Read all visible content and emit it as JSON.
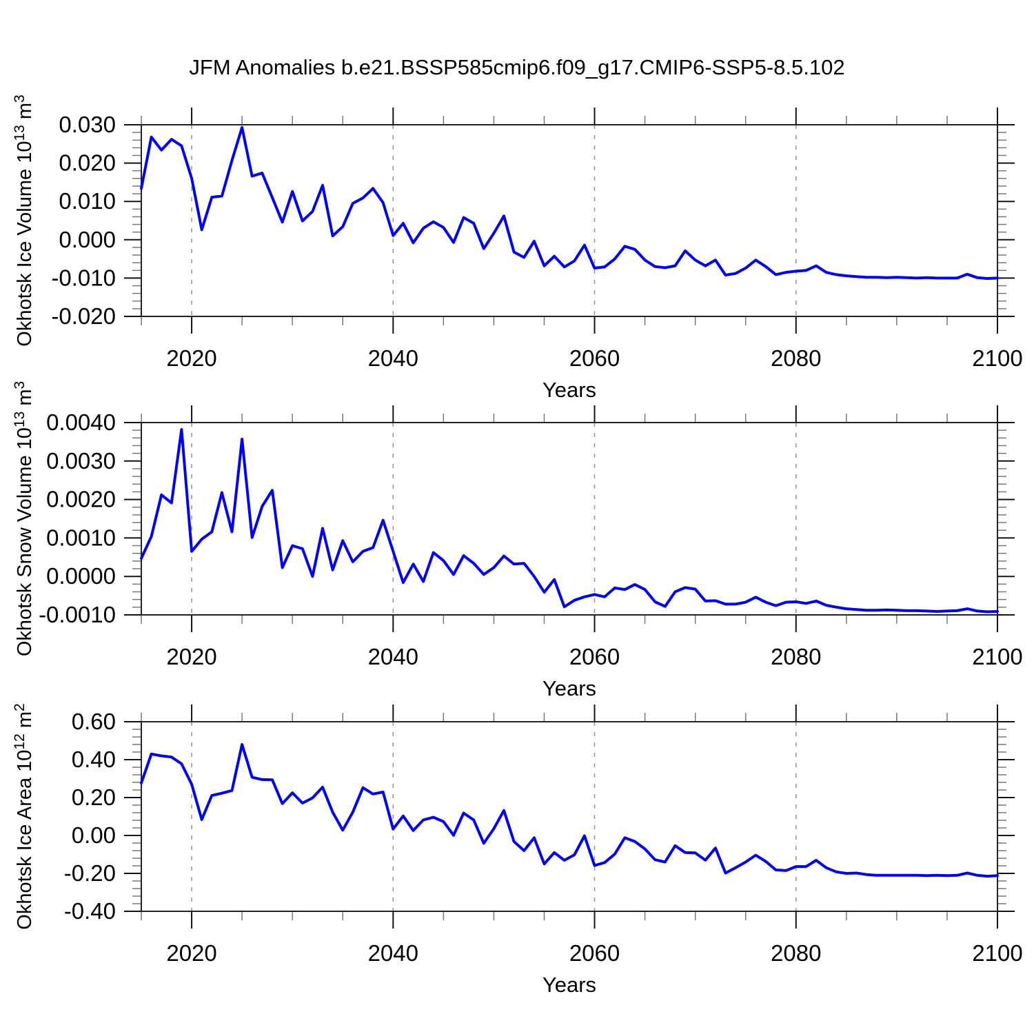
{
  "title": "JFM Anomalies b.e21.BSSP585cmip6.f09_g17.CMIP6-SSP5-8.5.102",
  "line_color": "#0000FF",
  "grid_color": "#999999",
  "axis_color": "#222222",
  "x_axis": {
    "label": "Years",
    "lim": [
      2015,
      2100
    ],
    "major_ticks": [
      2020,
      2040,
      2060,
      2080,
      2100
    ],
    "major_tick_labels": [
      "2020",
      "2040",
      "2060",
      "2080",
      "2100"
    ],
    "minor_step": 5,
    "gridlines": [
      2020,
      2040,
      2060,
      2080
    ]
  },
  "chart_data": [
    {
      "type": "line",
      "ylabel": "Okhotsk Ice Volume 10^13 m^3",
      "ylabel_parts": {
        "base": "Okhotsk Ice Volume 10",
        "sup1": "13",
        "mid": " m",
        "sup2": "3"
      },
      "xlabel": "Years",
      "ylim": [
        -0.02,
        0.03
      ],
      "ytick_values": [
        0.03,
        0.02,
        0.01,
        0.0,
        -0.01,
        -0.02
      ],
      "ytick_labels": [
        "0.030",
        "0.020",
        "0.010",
        "0.000",
        "-0.010",
        "-0.020"
      ],
      "y_minor_step": 0.002,
      "grid": "vertical-dashed",
      "legend": "none",
      "x_start": 2015,
      "values": [
        0.0134,
        0.0268,
        0.0234,
        0.0262,
        0.0245,
        0.016,
        0.0026,
        0.0111,
        0.0114,
        0.0207,
        0.0293,
        0.0166,
        0.0174,
        0.011,
        0.0046,
        0.0126,
        0.0049,
        0.0074,
        0.0142,
        0.001,
        0.0034,
        0.0095,
        0.0109,
        0.0134,
        0.0097,
        0.0011,
        0.0043,
        -0.0008,
        0.003,
        0.0047,
        0.0032,
        -0.0007,
        0.0058,
        0.0043,
        -0.0023,
        0.0017,
        0.0062,
        -0.0032,
        -0.0046,
        -0.0004,
        -0.0068,
        -0.0043,
        -0.0071,
        -0.0055,
        -0.0014,
        -0.0074,
        -0.0071,
        -0.005,
        -0.0017,
        -0.0025,
        -0.0053,
        -0.007,
        -0.0073,
        -0.0068,
        -0.0029,
        -0.0053,
        -0.0068,
        -0.0053,
        -0.0092,
        -0.0088,
        -0.0074,
        -0.0053,
        -0.007,
        -0.0091,
        -0.0085,
        -0.0082,
        -0.008,
        -0.0068,
        -0.0085,
        -0.0091,
        -0.0094,
        -0.0096,
        -0.0098,
        -0.0098,
        -0.0099,
        -0.0098,
        -0.0099,
        -0.01,
        -0.0099,
        -0.01,
        -0.01,
        -0.01,
        -0.009,
        -0.0099,
        -0.0101,
        -0.01
      ]
    },
    {
      "type": "line",
      "ylabel": "Okhotsk Snow Volume 10^13 m^3",
      "ylabel_parts": {
        "base": "Okhotsk Snow Volume 10",
        "sup1": "13",
        "mid": " m",
        "sup2": "3"
      },
      "xlabel": "Years",
      "ylim": [
        -0.001,
        0.004
      ],
      "ytick_values": [
        0.004,
        0.003,
        0.002,
        0.001,
        0.0,
        -0.001
      ],
      "ytick_labels": [
        "0.0040",
        "0.0030",
        "0.0020",
        "0.0010",
        "0.0000",
        "-0.0010"
      ],
      "y_minor_step": 0.0002,
      "grid": "vertical-dashed",
      "legend": "none",
      "x_start": 2015,
      "values": [
        0.00047,
        0.00104,
        0.00212,
        0.00191,
        0.00382,
        0.00065,
        0.00097,
        0.00116,
        0.00218,
        0.00116,
        0.00357,
        0.00101,
        0.00182,
        0.00224,
        0.00023,
        0.0008,
        0.00072,
        0.0,
        0.00125,
        0.00017,
        0.00093,
        0.00038,
        0.00065,
        0.00075,
        0.00146,
        0.00065,
        -0.00016,
        0.00032,
        -0.00013,
        0.00062,
        0.00041,
        5e-05,
        0.00054,
        0.00034,
        5e-05,
        0.00023,
        0.00053,
        0.00032,
        0.00034,
        0.0,
        -0.00041,
        -8e-05,
        -0.00079,
        -0.00062,
        -0.00053,
        -0.00047,
        -0.00053,
        -0.0003,
        -0.00034,
        -0.00021,
        -0.00034,
        -0.00066,
        -0.00078,
        -0.0004,
        -0.00029,
        -0.00033,
        -0.00064,
        -0.00063,
        -0.00072,
        -0.00072,
        -0.00067,
        -0.00054,
        -0.00067,
        -0.00076,
        -0.00067,
        -0.00066,
        -0.0007,
        -0.00064,
        -0.00075,
        -0.0008,
        -0.00084,
        -0.00086,
        -0.00088,
        -0.00088,
        -0.00087,
        -0.00088,
        -0.00089,
        -0.00089,
        -0.0009,
        -0.00091,
        -0.0009,
        -0.00089,
        -0.00084,
        -0.0009,
        -0.00092,
        -0.00091
      ]
    },
    {
      "type": "line",
      "ylabel": "Okhotsk Ice Area 10^12 m^2",
      "ylabel_parts": {
        "base": "Okhotsk Ice Area 10",
        "sup1": "12",
        "mid": " m",
        "sup2": "2"
      },
      "xlabel": "Years",
      "ylim": [
        -0.4,
        0.6
      ],
      "ytick_values": [
        0.6,
        0.4,
        0.2,
        0.0,
        -0.2,
        -0.4
      ],
      "ytick_labels": [
        "0.60",
        "0.40",
        "0.20",
        "0.00",
        "-0.20",
        "-0.40"
      ],
      "y_minor_step": 0.04,
      "grid": "vertical-dashed",
      "legend": "none",
      "x_start": 2015,
      "values": [
        0.277,
        0.43,
        0.42,
        0.414,
        0.378,
        0.27,
        0.084,
        0.211,
        0.223,
        0.237,
        0.48,
        0.307,
        0.295,
        0.294,
        0.168,
        0.225,
        0.171,
        0.198,
        0.255,
        0.123,
        0.028,
        0.123,
        0.252,
        0.219,
        0.229,
        0.034,
        0.103,
        0.026,
        0.082,
        0.096,
        0.073,
        0.001,
        0.118,
        0.082,
        -0.041,
        0.036,
        0.132,
        -0.032,
        -0.08,
        -0.012,
        -0.15,
        -0.09,
        -0.131,
        -0.102,
        -0.002,
        -0.158,
        -0.143,
        -0.098,
        -0.012,
        -0.032,
        -0.071,
        -0.128,
        -0.14,
        -0.054,
        -0.09,
        -0.092,
        -0.13,
        -0.066,
        -0.198,
        -0.17,
        -0.14,
        -0.104,
        -0.137,
        -0.182,
        -0.185,
        -0.164,
        -0.164,
        -0.131,
        -0.17,
        -0.192,
        -0.2,
        -0.198,
        -0.206,
        -0.21,
        -0.21,
        -0.21,
        -0.21,
        -0.21,
        -0.212,
        -0.21,
        -0.212,
        -0.21,
        -0.198,
        -0.21,
        -0.215,
        -0.212
      ]
    }
  ]
}
